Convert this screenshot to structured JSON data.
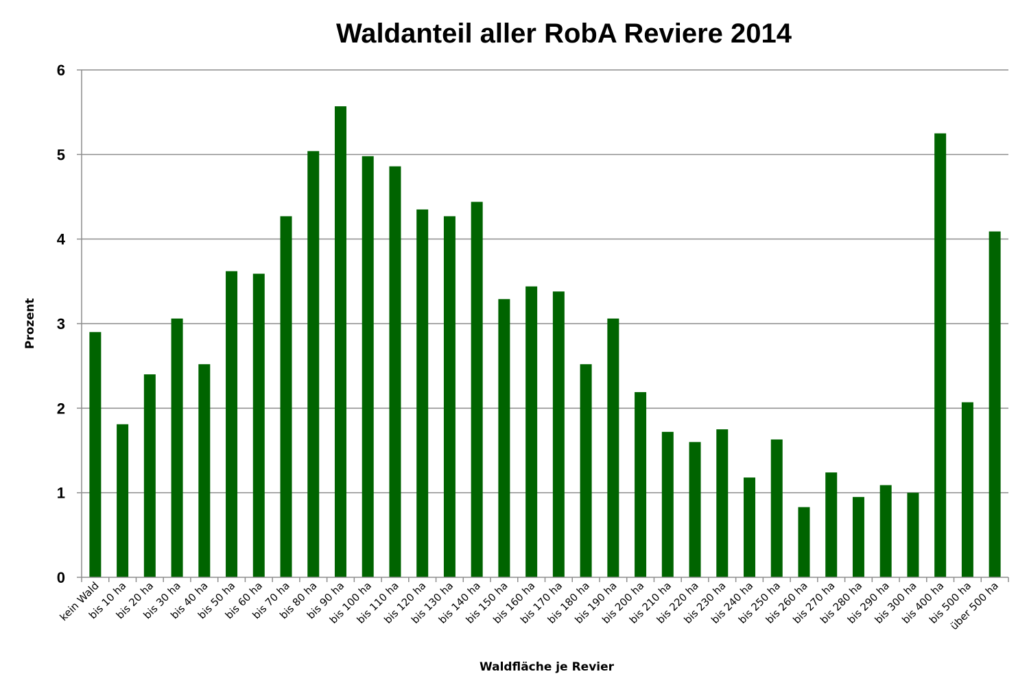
{
  "chart_data": {
    "type": "bar",
    "title": "Waldanteil aller RobA Reviere 2014",
    "xlabel": "Waldfläche je Revier",
    "ylabel": "Prozent",
    "ylim": [
      0,
      6
    ],
    "yticks": [
      "0",
      "1",
      "2",
      "3",
      "4",
      "5",
      "6"
    ],
    "grid": true,
    "legend": "none",
    "bar_color": "#006400",
    "categories": [
      "kein Wald",
      "bis 10 ha",
      "bis 20 ha",
      "bis 30 ha",
      "bis 40 ha",
      "bis 50 ha",
      "bis 60 ha",
      "bis 70 ha",
      "bis 80 ha",
      "bis 90 ha",
      "bis 100 ha",
      "bis 110 ha",
      "bis 120 ha",
      "bis 130 ha",
      "bis 140 ha",
      "bis 150 ha",
      "bis 160 ha",
      "bis 170 ha",
      "bis 180 ha",
      "bis 190 ha",
      "bis 200 ha",
      "bis 210 ha",
      "bis 220 ha",
      "bis 230 ha",
      "bis 240 ha",
      "bis 250 ha",
      "bis 260 ha",
      "bis 270 ha",
      "bis 280 ha",
      "bis 290 ha",
      "bis 300 ha",
      "bis 400 ha",
      "bis 500 ha",
      "über 500 ha"
    ],
    "values": [
      2.9,
      1.81,
      2.4,
      3.06,
      2.52,
      3.62,
      3.59,
      4.27,
      5.04,
      5.57,
      4.98,
      4.86,
      4.35,
      4.27,
      4.44,
      3.29,
      3.44,
      3.38,
      2.52,
      3.06,
      2.19,
      1.72,
      1.6,
      1.75,
      1.18,
      1.63,
      0.83,
      1.24,
      0.95,
      1.09,
      1.0,
      5.25,
      2.07,
      4.09
    ]
  }
}
